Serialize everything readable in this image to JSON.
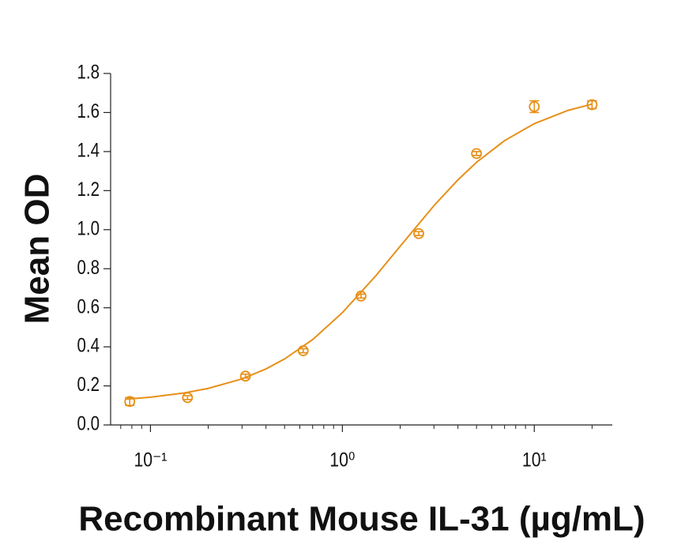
{
  "chart_data": {
    "type": "scatter",
    "xlabel": "Recombinant Mouse IL-31 (µg/mL)",
    "ylabel": "Mean OD",
    "xscale": "log",
    "color": "#e69019",
    "x": [
      0.078,
      0.156,
      0.3125,
      0.625,
      1.25,
      2.5,
      5,
      10,
      20
    ],
    "values": [
      0.12,
      0.14,
      0.25,
      0.38,
      0.66,
      0.98,
      1.39,
      1.63,
      1.64
    ],
    "errors": [
      0.02,
      0.01,
      0.01,
      0.01,
      0.01,
      0.01,
      0.01,
      0.03,
      0.02
    ],
    "curve": {
      "x": [
        0.075,
        0.1,
        0.15,
        0.2,
        0.3,
        0.4,
        0.5,
        0.7,
        1,
        1.5,
        2,
        3,
        4,
        5,
        7,
        10,
        15,
        20
      ],
      "values": [
        0.132,
        0.142,
        0.164,
        0.187,
        0.236,
        0.287,
        0.338,
        0.437,
        0.575,
        0.766,
        0.915,
        1.123,
        1.255,
        1.345,
        1.456,
        1.543,
        1.611,
        1.643
      ]
    },
    "xlim": [
      0.062,
      25.5
    ],
    "xticks": [
      {
        "value": 0.1,
        "label": "10⁻¹"
      },
      {
        "value": 1,
        "label": "10⁰"
      },
      {
        "value": 10,
        "label": "10¹"
      }
    ],
    "xminorticks": [
      0.07,
      0.08,
      0.09,
      0.2,
      0.3,
      0.4,
      0.5,
      0.6,
      0.7,
      0.8,
      0.9,
      2,
      3,
      4,
      5,
      6,
      7,
      8,
      9,
      20
    ],
    "ylim": [
      0,
      1.8
    ],
    "yticks": [
      {
        "value": 0,
        "label": "0.0"
      },
      0.2,
      0.4,
      0.6,
      0.8,
      {
        "value": 1,
        "label": "1.0"
      },
      1.2,
      1.4,
      1.6,
      1.8
    ]
  }
}
